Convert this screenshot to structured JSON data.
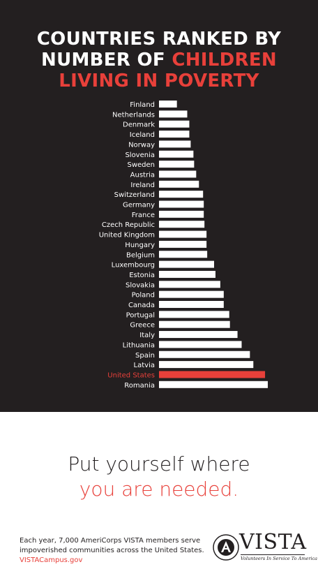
{
  "title": {
    "line1": "COUNTRIES RANKED BY",
    "line2_prefix": "NUMBER OF",
    "line2_highlight": "CHILDREN",
    "line3": "LIVING IN POVERTY"
  },
  "colors": {
    "background_dark": "#231f20",
    "bar_default": "#ffffff",
    "highlight": "#e8403a",
    "label_default": "#ffffff"
  },
  "chart_data": {
    "type": "bar",
    "orientation": "horizontal",
    "title": "COUNTRIES RANKED BY NUMBER OF CHILDREN LIVING IN POVERTY",
    "xlabel": "",
    "ylabel": "",
    "grid": false,
    "categories": [
      "Finland",
      "Netherlands",
      "Denmark",
      "Iceland",
      "Norway",
      "Slovenia",
      "Sweden",
      "Austria",
      "Ireland",
      "Switzerland",
      "Germany",
      "France",
      "Czech Republic",
      "United Kingdom",
      "Hungary",
      "Belgium",
      "Luxembourg",
      "Estonia",
      "Slovakia",
      "Poland",
      "Canada",
      "Portugal",
      "Greece",
      "Italy",
      "Lithuania",
      "Spain",
      "Latvia",
      "United States",
      "Romania"
    ],
    "values": [
      26,
      41,
      44,
      44,
      46,
      50,
      51,
      54,
      58,
      64,
      65,
      65,
      66,
      69,
      69,
      70,
      80,
      82,
      89,
      94,
      94,
      102,
      103,
      114,
      120,
      132,
      137,
      154,
      158
    ],
    "highlight": "United States",
    "xlim": [
      0,
      160
    ]
  },
  "tagline": {
    "line1": "Put yourself where",
    "line2": "you are needed."
  },
  "footer": {
    "text": "Each year, 7,000 AmeriCorps VISTA members serve impoverished communities across the United States.",
    "link": "VISTACampus.gov"
  },
  "logo": {
    "wordmark": "VISTA",
    "subtitle": "Volunteers In Service To America",
    "seal_text": "AMERICORPS VISTA"
  }
}
